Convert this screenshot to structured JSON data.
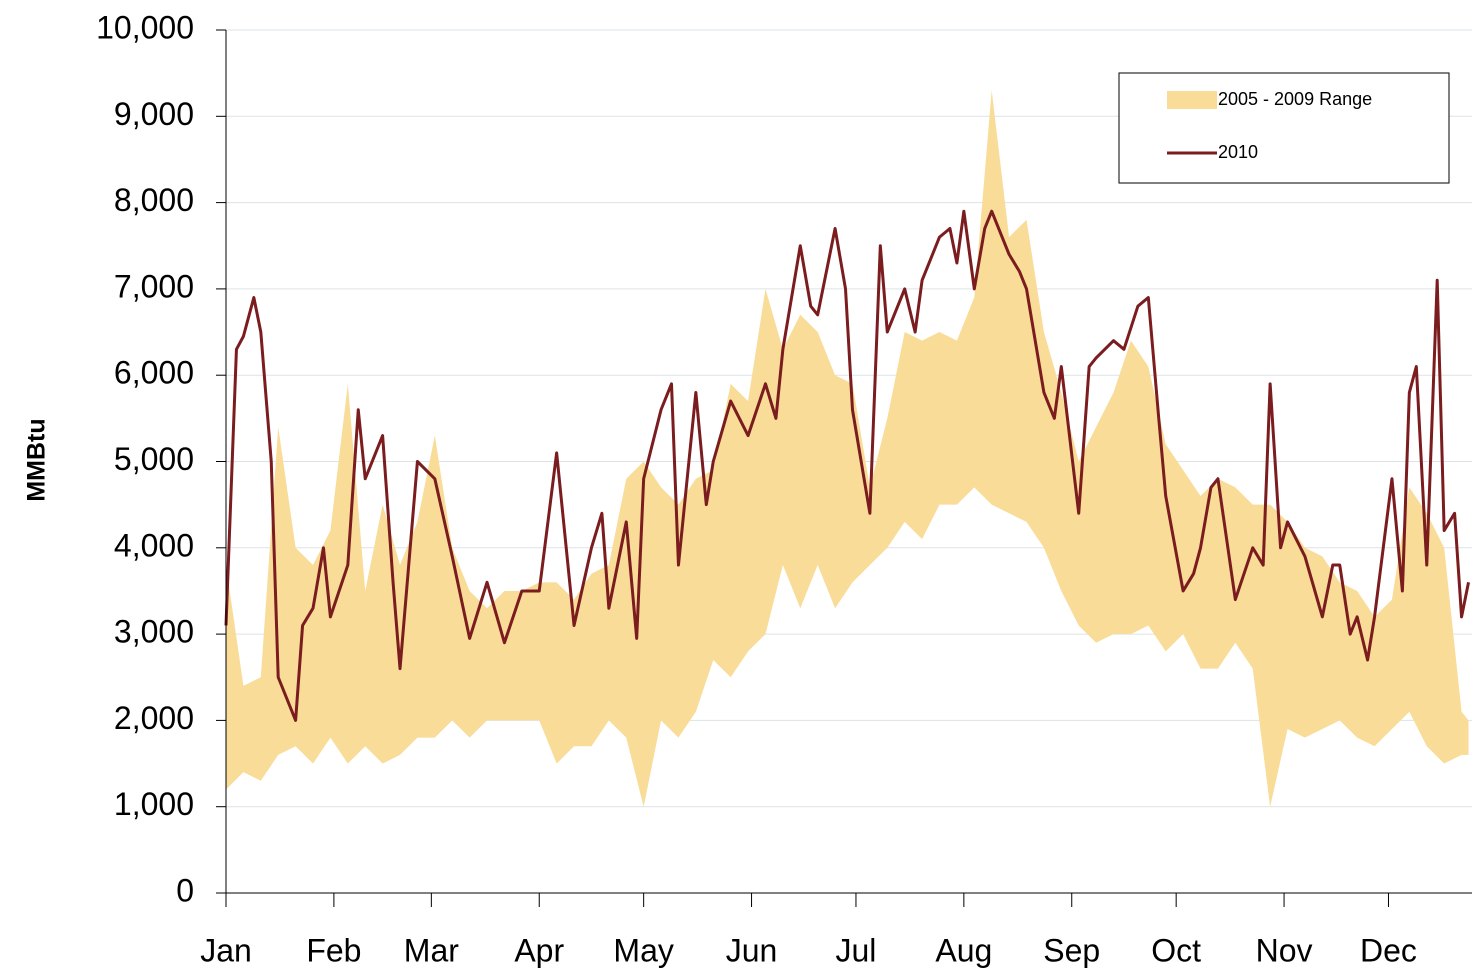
{
  "chart_data": {
    "type": "range-line",
    "ylabel": "MMBtu",
    "xlim": [
      0,
      358
    ],
    "ylim": [
      0,
      10000
    ],
    "xticks": [
      {
        "value": 0,
        "label": "Jan"
      },
      {
        "value": 31,
        "label": "Feb"
      },
      {
        "value": 59,
        "label": "Mar"
      },
      {
        "value": 90,
        "label": "Apr"
      },
      {
        "value": 120,
        "label": "May"
      },
      {
        "value": 151,
        "label": "Jun"
      },
      {
        "value": 181,
        "label": "Jul"
      },
      {
        "value": 212,
        "label": "Aug"
      },
      {
        "value": 243,
        "label": "Sep"
      },
      {
        "value": 273,
        "label": "Oct"
      },
      {
        "value": 304,
        "label": "Nov"
      },
      {
        "value": 334,
        "label": "Dec"
      }
    ],
    "yticks": [
      0,
      {
        "value": 1000,
        "label": "1,000"
      },
      {
        "value": 2000,
        "label": "2,000"
      },
      {
        "value": 3000,
        "label": "3,000"
      },
      {
        "value": 4000,
        "label": "4,000"
      },
      {
        "value": 5000,
        "label": "5,000"
      },
      {
        "value": 6000,
        "label": "6,000"
      },
      {
        "value": 7000,
        "label": "7,000"
      },
      {
        "value": 8000,
        "label": "8,000"
      },
      {
        "value": 9000,
        "label": "9,000"
      },
      {
        "value": 10000,
        "label": "10,000"
      }
    ],
    "grid": true,
    "legend": "upper right",
    "series": [
      {
        "name": "2005 - 2009 Range",
        "color": "#f8dc98",
        "x": [
          0,
          5,
          10,
          15,
          20,
          25,
          30,
          35,
          40,
          45,
          50,
          55,
          60,
          65,
          70,
          75,
          80,
          85,
          90,
          95,
          100,
          105,
          110,
          115,
          120,
          125,
          130,
          135,
          140,
          145,
          150,
          155,
          160,
          165,
          170,
          175,
          180,
          185,
          190,
          195,
          200,
          205,
          210,
          215,
          220,
          225,
          230,
          235,
          240,
          245,
          250,
          255,
          260,
          265,
          270,
          275,
          280,
          285,
          290,
          295,
          300,
          305,
          310,
          315,
          320,
          325,
          330,
          335,
          340,
          345,
          350,
          355,
          357
        ],
        "low": [
          1200,
          1400,
          1300,
          1600,
          1700,
          1500,
          1800,
          1500,
          1700,
          1500,
          1600,
          1800,
          1800,
          2000,
          1800,
          2000,
          2000,
          2000,
          2000,
          1500,
          1700,
          1700,
          2000,
          1800,
          1000,
          2000,
          1800,
          2100,
          2700,
          2500,
          2800,
          3000,
          3800,
          3300,
          3800,
          3300,
          3600,
          3800,
          4000,
          4300,
          4100,
          4500,
          4500,
          4700,
          4500,
          4400,
          4300,
          4000,
          3500,
          3100,
          2900,
          3000,
          3000,
          3100,
          2800,
          3000,
          2600,
          2600,
          2900,
          2600,
          1000,
          1900,
          1800,
          1900,
          2000,
          1800,
          1700,
          1900,
          2100,
          1700,
          1500,
          1600,
          1600
        ],
        "high": [
          3800,
          2400,
          2500,
          5400,
          4000,
          3800,
          4200,
          5900,
          3500,
          4500,
          3800,
          4300,
          5300,
          4000,
          3500,
          3300,
          3500,
          3500,
          3600,
          3600,
          3400,
          3700,
          3800,
          4800,
          5000,
          4700,
          4500,
          4800,
          4900,
          5900,
          5700,
          7000,
          6300,
          6700,
          6500,
          6000,
          5900,
          4700,
          5500,
          6500,
          6400,
          6500,
          6400,
          6900,
          9300,
          7600,
          7800,
          6500,
          5800,
          5000,
          5400,
          5800,
          6400,
          6100,
          5200,
          4900,
          4600,
          4800,
          4700,
          4500,
          4500,
          4300,
          4000,
          3900,
          3600,
          3500,
          3200,
          3400,
          4700,
          4400,
          4000,
          2100,
          2000
        ]
      },
      {
        "name": "2010",
        "color": "#7b1c1f",
        "x": [
          0,
          3,
          5,
          8,
          10,
          13,
          15,
          20,
          22,
          25,
          28,
          30,
          35,
          38,
          40,
          45,
          48,
          50,
          55,
          60,
          65,
          70,
          75,
          80,
          85,
          90,
          95,
          100,
          105,
          108,
          110,
          115,
          118,
          120,
          125,
          128,
          130,
          135,
          138,
          140,
          145,
          150,
          155,
          158,
          160,
          165,
          168,
          170,
          175,
          178,
          180,
          185,
          188,
          190,
          195,
          198,
          200,
          205,
          208,
          210,
          212,
          215,
          218,
          220,
          225,
          228,
          230,
          235,
          238,
          240,
          245,
          248,
          250,
          255,
          258,
          262,
          265,
          268,
          270,
          275,
          278,
          280,
          283,
          285,
          290,
          295,
          298,
          300,
          303,
          305,
          310,
          315,
          318,
          320,
          323,
          325,
          328,
          330,
          335,
          338,
          340,
          342,
          345,
          348,
          350,
          353,
          355,
          357
        ],
        "values": [
          3100,
          6300,
          6450,
          6900,
          6500,
          5000,
          2500,
          2000,
          3100,
          3300,
          4000,
          3200,
          3800,
          5600,
          4800,
          5300,
          3600,
          2600,
          5000,
          4800,
          3900,
          2950,
          3600,
          2900,
          3500,
          3500,
          5100,
          3100,
          4000,
          4400,
          3300,
          4300,
          2950,
          4800,
          5600,
          5900,
          3800,
          5800,
          4500,
          5000,
          5700,
          5300,
          5900,
          5500,
          6300,
          7500,
          6800,
          6700,
          7700,
          7000,
          5600,
          4400,
          7500,
          6500,
          7000,
          6500,
          7100,
          7600,
          7700,
          7300,
          7900,
          7000,
          7700,
          7900,
          7400,
          7200,
          7000,
          5800,
          5500,
          6100,
          4400,
          6100,
          6200,
          6400,
          6300,
          6800,
          6900,
          5500,
          4600,
          3500,
          3700,
          4000,
          4700,
          4800,
          3400,
          4000,
          3800,
          5900,
          4000,
          4300,
          3900,
          3200,
          3800,
          3800,
          3000,
          3200,
          2700,
          3200,
          4800,
          3500,
          5800,
          6100,
          3800,
          7100,
          4200,
          4400,
          3200,
          3600
        ]
      }
    ]
  }
}
